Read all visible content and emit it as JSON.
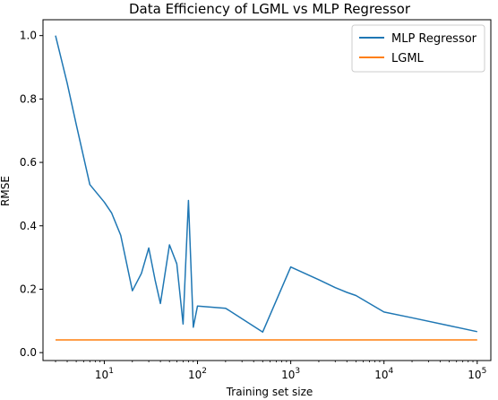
{
  "chart_data": {
    "type": "line",
    "title": "Data Efficiency of LGML vs MLP Regressor",
    "xlabel": "Training set size",
    "ylabel": "RMSE",
    "xscale": "log",
    "xlim": [
      2.2,
      140000
    ],
    "ylim": [
      -0.025,
      1.05
    ],
    "xticks": [
      10,
      100,
      1000,
      10000,
      100000
    ],
    "xtick_labels": [
      {
        "base": "10",
        "exp": "1"
      },
      {
        "base": "10",
        "exp": "2"
      },
      {
        "base": "10",
        "exp": "3"
      },
      {
        "base": "10",
        "exp": "4"
      },
      {
        "base": "10",
        "exp": "5"
      }
    ],
    "yticks": [
      0.0,
      0.2,
      0.4,
      0.6,
      0.8,
      1.0
    ],
    "ytick_labels": [
      "0.0",
      "0.2",
      "0.4",
      "0.6",
      "0.8",
      "1.0"
    ],
    "legend_position": "top-right",
    "grid": false,
    "series": [
      {
        "name": "MLP Regressor",
        "color": "#1f77b4",
        "x": [
          3,
          4,
          5,
          7,
          10,
          12,
          15,
          20,
          25,
          30,
          35,
          40,
          50,
          60,
          70,
          80,
          90,
          100,
          200,
          500,
          1000,
          2000,
          3000,
          4000,
          5000,
          10000,
          20000,
          50000,
          100000
        ],
        "y": [
          1.0,
          0.85,
          0.72,
          0.53,
          0.475,
          0.44,
          0.37,
          0.195,
          0.25,
          0.33,
          0.23,
          0.155,
          0.34,
          0.28,
          0.09,
          0.48,
          0.08,
          0.147,
          0.14,
          0.065,
          0.27,
          0.23,
          0.205,
          0.19,
          0.18,
          0.128,
          0.11,
          0.085,
          0.066
        ]
      },
      {
        "name": "LGML",
        "color": "#ff7f0e",
        "x": [
          3,
          100000
        ],
        "y": [
          0.04,
          0.04
        ]
      }
    ]
  }
}
